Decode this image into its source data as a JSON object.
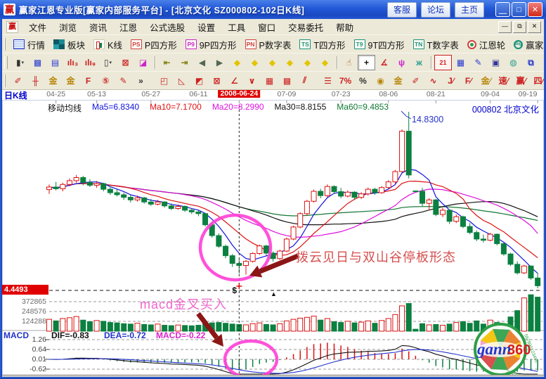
{
  "window": {
    "title": "赢家江恩专业版[赢家内部服务平台] - [北京文化  SZ000802-102日K线]",
    "logo_char": "赢",
    "title_buttons": [
      "客服",
      "论坛",
      "主页"
    ],
    "window_buttons": [
      {
        "name": "minimize-button",
        "glyph": "＿"
      },
      {
        "name": "maximize-button",
        "glyph": "□"
      },
      {
        "name": "close-button",
        "glyph": "✕",
        "close": true
      }
    ],
    "menu_items": [
      "文件",
      "浏览",
      "资讯",
      "江恩",
      "公式选股",
      "设置",
      "工具",
      "窗口",
      "交易委托",
      "帮助"
    ],
    "mdi_buttons": [
      {
        "name": "mdi-minimize-button",
        "glyph": "—"
      },
      {
        "name": "mdi-restore-button",
        "glyph": "⧉"
      },
      {
        "name": "mdi-close-button",
        "glyph": "✕"
      }
    ]
  },
  "toolbar_main": [
    {
      "name": "quotes-button",
      "icon": "table",
      "label": "行情"
    },
    {
      "name": "sectors-button",
      "icon": "blocks",
      "label": "板块"
    },
    {
      "name": "kline-button",
      "icon": "candles",
      "label": "K线"
    },
    {
      "name": "p-square-button",
      "icon": "badge",
      "badge": "PS",
      "bc": "#d04040",
      "label": "P四方形"
    },
    {
      "name": "p9-square-button",
      "icon": "badge",
      "badge": "P9",
      "bc": "#cc22cc",
      "label": "9P四方形"
    },
    {
      "name": "p-number-button",
      "icon": "badge",
      "badge": "PN",
      "bc": "#d04040",
      "label": "P数字表"
    },
    {
      "name": "t-square-button",
      "icon": "badge",
      "badge": "TS",
      "bc": "#18937a",
      "label": "T四方形"
    },
    {
      "name": "t9-square-button",
      "icon": "badge",
      "badge": "T9",
      "bc": "#18937a",
      "label": "9T四方形"
    },
    {
      "name": "t-number-button",
      "icon": "badge",
      "badge": "TN",
      "bc": "#18937a",
      "label": "T数字表"
    },
    {
      "name": "gann-wheel-button",
      "icon": "wheel",
      "label": "江恩轮"
    },
    {
      "name": "winner-wheel-button",
      "icon": "bigwheel",
      "badge": "Big",
      "label": "赢家轮"
    },
    {
      "name": "toolbar1-overflow",
      "icon": "chevron",
      "label": "»"
    }
  ],
  "toolbar_tools": [
    {
      "name": "candle-style-dropdown",
      "glyph": "▮",
      "caret": true,
      "color": "#333333"
    },
    {
      "name": "pattern-icon",
      "glyph": "▩",
      "color": "#2a3bd0"
    },
    {
      "name": "notes-icon",
      "glyph": "▤",
      "color": "#2a3bd0"
    },
    {
      "name": "bars-3-icon",
      "glyph": "ılı₃",
      "color": "#cc2222"
    },
    {
      "name": "bars-9-icon",
      "glyph": "ılı₉",
      "color": "#cc2222"
    },
    {
      "name": "thin-candle-dropdown",
      "glyph": "▯",
      "caret": true,
      "color": "#333333"
    },
    {
      "name": "percent-frame-icon",
      "glyph": "⊠",
      "color": "#cc2222"
    },
    {
      "name": "flag-chart-icon",
      "glyph": "◪",
      "color": "#cc22cc"
    },
    {
      "sep": true
    },
    {
      "name": "skip-start-button",
      "glyph": "⇤",
      "color": "#7a7a00"
    },
    {
      "name": "skip-end-button",
      "glyph": "⇥",
      "color": "#7a7a00"
    },
    {
      "name": "step-back-button",
      "glyph": "◀",
      "color": "#556655"
    },
    {
      "name": "step-forward-button",
      "glyph": "▶",
      "color": "#556655"
    },
    {
      "name": "zoom-left-button",
      "glyph": "◆",
      "color": "#e2c400"
    },
    {
      "name": "zoom-right-button",
      "glyph": "◆",
      "color": "#e2c400"
    },
    {
      "name": "expand-h-button",
      "glyph": "◆",
      "color": "#e2c400"
    },
    {
      "name": "compress-h-button",
      "glyph": "◆",
      "color": "#e2c400"
    },
    {
      "name": "expand-v-button",
      "glyph": "◆",
      "color": "#e2c400"
    },
    {
      "name": "compress-v-button",
      "glyph": "◆",
      "color": "#e2c400"
    },
    {
      "sep": true
    },
    {
      "name": "hand-tool",
      "glyph": "☝",
      "color": "#a05010"
    },
    {
      "name": "crosshair-tool",
      "glyph": "+",
      "color": "#111111",
      "pressed": true
    },
    {
      "name": "angle-tool",
      "glyph": "∡",
      "color": "#cc2222"
    },
    {
      "name": "gann-flower-tool",
      "glyph": "ψ",
      "color": "#cc22cc"
    },
    {
      "name": "cloud-tool",
      "glyph": "ж",
      "color": "#2a9d8f"
    },
    {
      "sep": true
    },
    {
      "name": "calendar-button",
      "glyph": "21",
      "cal": true
    },
    {
      "name": "calculator-button",
      "glyph": "▦",
      "color": "#2a3bd0"
    },
    {
      "name": "edit-notes-button",
      "glyph": "✎",
      "color": "#2a3bd0"
    },
    {
      "name": "save-button",
      "glyph": "▣",
      "color": "#333399"
    },
    {
      "name": "web-button",
      "glyph": "◍",
      "color": "#2a9d8f"
    },
    {
      "name": "remote-button",
      "glyph": "⧉",
      "color": "#2a3bd0"
    }
  ],
  "toolbar_draw": [
    {
      "name": "brush-tool",
      "glyph": "✐",
      "color": "#cc2222"
    },
    {
      "name": "grid-tool",
      "glyph": "╫",
      "color": "#cc2222"
    },
    {
      "name": "gold-grid-tool",
      "glyph": "金",
      "color": "#b8860b"
    },
    {
      "name": "gold-grid2-tool",
      "glyph": "金",
      "color": "#b8860b"
    },
    {
      "name": "f-grid-tool",
      "glyph": "F",
      "color": "#cc2222"
    },
    {
      "name": "five-grid-tool",
      "glyph": "⑤",
      "color": "#cc2222"
    },
    {
      "name": "pen-grid-tool",
      "glyph": "✎",
      "color": "#cc2222"
    },
    {
      "name": "draw-overflow",
      "glyph": "»",
      "color": "#333333"
    },
    {
      "sep": true
    },
    {
      "name": "gann-box-tool",
      "glyph": "◰",
      "color": "#cc2222"
    },
    {
      "name": "gann-fan-tool",
      "glyph": "◺",
      "color": "#cc2222"
    },
    {
      "name": "fan-box-tool",
      "glyph": "◩",
      "color": "#cc2222"
    },
    {
      "name": "fan-box2-tool",
      "glyph": "⊠",
      "color": "#cc2222"
    },
    {
      "name": "angle-lines-tool",
      "glyph": "∠",
      "color": "#cc2222"
    },
    {
      "name": "vee-tool",
      "glyph": "∨",
      "color": "#cc2222"
    },
    {
      "name": "grid-fine-tool",
      "glyph": "▦",
      "color": "#cc2222"
    },
    {
      "name": "grid-dense-tool",
      "glyph": "▩",
      "color": "#cc2222"
    },
    {
      "name": "slant-lines-tool",
      "glyph": "⫽",
      "color": "#cc2222"
    },
    {
      "sep": true
    },
    {
      "name": "ruler-tool",
      "glyph": "☰",
      "color": "#cc2222"
    },
    {
      "name": "seven-percent-tool",
      "glyph": "7%",
      "color": "#cc2222"
    },
    {
      "name": "percent-tool",
      "glyph": "%",
      "color": "#333333"
    },
    {
      "name": "gold-circle-tool",
      "glyph": "◉",
      "color": "#b8860b"
    },
    {
      "name": "gold-line-tool",
      "glyph": "金",
      "color": "#b8860b"
    },
    {
      "name": "pen-bars-tool",
      "glyph": "✐",
      "color": "#cc2222"
    },
    {
      "name": "wave-tool",
      "glyph": "∿",
      "color": "#cc2222"
    },
    {
      "name": "j-angle-tool",
      "glyph": "J∕",
      "color": "#cc2222"
    },
    {
      "name": "f-angle-tool",
      "glyph": "F∕",
      "color": "#cc2222"
    },
    {
      "name": "gold-angle-tool",
      "glyph": "金∕",
      "color": "#b8860b"
    },
    {
      "name": "speed-angle-tool",
      "glyph": "速∕",
      "color": "#cc2222"
    },
    {
      "name": "win-angle-tool",
      "glyph": "赢∕",
      "color": "#cc2222"
    },
    {
      "name": "four-angle-tool",
      "glyph": "四∕",
      "color": "#cc2222"
    }
  ],
  "datebar": {
    "period_label": "日K线",
    "ticks": [
      {
        "label": "04-25",
        "index": 1
      },
      {
        "label": "05-13",
        "index": 7
      },
      {
        "label": "05-27",
        "index": 15
      },
      {
        "label": "06-11",
        "index": 22
      },
      {
        "label": "2008-06-24",
        "index": 28,
        "highlight": true
      },
      {
        "label": "07-09",
        "index": 35
      },
      {
        "label": "07-23",
        "index": 43
      },
      {
        "label": "08-06",
        "index": 50
      },
      {
        "label": "08-21",
        "index": 57
      },
      {
        "label": "09-04",
        "index": 65
      },
      {
        "label": "09-19",
        "index": 72
      }
    ]
  },
  "price_pane": {
    "header_title": "移动均线",
    "ma5": "Ma5=6.8340",
    "ma10": "Ma10=7.1700",
    "ma20": "Ma20=8.2990",
    "ma30": "Ma30=8.8155",
    "ma60": "Ma60=9.4853",
    "stock_label": "000802  北京文化",
    "peak_price_label": "14.8300",
    "current_price_tag": "4.4493",
    "annotation_pattern": "拨云见日与双山谷停板形态",
    "annotation_macd": "macd金叉买入",
    "dollar_marker": "$",
    "triangle_marker": "▲"
  },
  "volume_pane": {
    "scale_labels": [
      "372865",
      "248576",
      "124288"
    ]
  },
  "macd_pane": {
    "label": "MACD",
    "dif_label": "DIF=-0.83",
    "dea_label": "DEA=-0.72",
    "macd_label": "MACD=-0.22",
    "scale_labels": [
      "1.26",
      "0.64",
      "0.01",
      "-0.62"
    ]
  },
  "logo360": {
    "word": "gann",
    "number": "360"
  },
  "colors": {
    "up": "#dd1111",
    "down": "#0b8040",
    "ma5": "#1111dd",
    "ma10": "#dd1111",
    "ma20": "#dd11dd",
    "ma30": "#111111",
    "ma60": "#117733",
    "circle": "#ff3fd6",
    "arrow": "#8b1616",
    "dif_line": "#111111",
    "dea_line": "#2233cc",
    "grid": "#9a9a9a",
    "price_line": "#111111"
  },
  "chart_data": {
    "type": "candlestick",
    "symbol": "SZ000802",
    "period": "102日K线",
    "cursor_index": 28,
    "cursor_date": "2008-06-24",
    "price_line_value": 4.4493,
    "high_label_value": 14.83,
    "ma_windows": [
      5,
      10,
      20,
      30,
      60
    ],
    "ma_at_cursor": {
      "ma5": 6.834,
      "ma10": 7.17,
      "ma20": 8.299,
      "ma30": 8.8155,
      "ma60": 9.4853
    },
    "macd_at_cursor": {
      "dif": -0.83,
      "dea": -0.72,
      "macd": -0.22
    },
    "volume_scale": [
      124288,
      248576,
      372865
    ],
    "macd_scale": [
      1.26,
      0.64,
      0.01,
      -0.62
    ],
    "candles": [
      [
        10.3,
        10.6,
        10.05,
        10.45,
        150
      ],
      [
        10.45,
        10.75,
        10.25,
        10.35,
        130
      ],
      [
        10.35,
        10.7,
        10.2,
        10.6,
        160
      ],
      [
        10.6,
        10.95,
        10.5,
        10.82,
        170
      ],
      [
        10.82,
        11.15,
        10.7,
        11.0,
        185
      ],
      [
        11.0,
        11.1,
        10.55,
        10.72,
        140
      ],
      [
        10.72,
        10.9,
        10.45,
        10.55,
        120
      ],
      [
        10.55,
        10.8,
        10.4,
        10.65,
        135
      ],
      [
        10.65,
        10.7,
        10.2,
        10.32,
        125
      ],
      [
        10.32,
        10.5,
        10.0,
        10.12,
        110
      ],
      [
        10.12,
        10.3,
        9.9,
        10.0,
        105
      ],
      [
        10.0,
        10.12,
        9.7,
        9.85,
        95
      ],
      [
        9.85,
        10.0,
        9.55,
        9.7,
        90
      ],
      [
        9.7,
        9.95,
        9.6,
        9.82,
        100
      ],
      [
        9.82,
        9.88,
        9.48,
        9.58,
        85
      ],
      [
        9.58,
        9.75,
        9.35,
        9.45,
        80
      ],
      [
        9.45,
        9.7,
        9.38,
        9.58,
        90
      ],
      [
        9.58,
        9.62,
        9.25,
        9.35,
        75
      ],
      [
        9.35,
        9.5,
        9.1,
        9.2,
        70
      ],
      [
        9.2,
        9.42,
        9.12,
        9.32,
        78
      ],
      [
        9.32,
        9.38,
        9.0,
        9.1,
        72
      ],
      [
        9.1,
        9.22,
        8.88,
        9.0,
        68
      ],
      [
        9.0,
        9.08,
        8.75,
        8.9,
        75
      ],
      [
        8.9,
        8.95,
        8.15,
        8.25,
        95
      ],
      [
        8.25,
        8.4,
        7.5,
        7.62,
        105
      ],
      [
        7.62,
        7.75,
        6.9,
        7.0,
        110
      ],
      [
        7.0,
        7.1,
        6.3,
        6.45,
        100
      ],
      [
        6.45,
        6.55,
        5.8,
        6.0,
        90
      ],
      [
        6.0,
        6.25,
        5.4,
        5.88,
        85
      ],
      [
        5.88,
        6.2,
        5.35,
        6.12,
        80
      ],
      [
        6.12,
        6.65,
        6.05,
        6.58,
        95
      ],
      [
        6.58,
        7.1,
        6.5,
        7.02,
        105
      ],
      [
        7.02,
        7.08,
        6.45,
        6.6,
        85
      ],
      [
        6.6,
        6.7,
        6.1,
        6.28,
        80
      ],
      [
        6.28,
        6.8,
        6.2,
        6.72,
        95
      ],
      [
        6.72,
        7.5,
        6.65,
        7.42,
        130
      ],
      [
        7.42,
        8.2,
        7.35,
        8.12,
        150
      ],
      [
        8.12,
        8.98,
        8.05,
        8.9,
        165
      ],
      [
        8.9,
        9.7,
        8.8,
        9.62,
        175
      ],
      [
        9.62,
        10.3,
        9.55,
        10.2,
        190
      ],
      [
        10.2,
        10.35,
        9.8,
        9.95,
        140
      ],
      [
        9.95,
        10.6,
        9.85,
        10.48,
        160
      ],
      [
        10.48,
        10.55,
        10.05,
        10.18,
        120
      ],
      [
        10.18,
        10.4,
        9.8,
        9.92,
        110
      ],
      [
        9.92,
        10.25,
        9.85,
        10.15,
        125
      ],
      [
        10.15,
        10.2,
        9.7,
        9.85,
        105
      ],
      [
        9.85,
        10.15,
        9.75,
        10.05,
        115
      ],
      [
        10.05,
        10.42,
        9.95,
        10.32,
        130
      ],
      [
        10.32,
        10.4,
        10.0,
        10.12,
        100
      ],
      [
        10.12,
        10.5,
        10.05,
        10.42,
        135
      ],
      [
        10.42,
        10.85,
        10.35,
        10.75,
        160
      ],
      [
        10.75,
        11.45,
        10.65,
        11.35,
        210
      ],
      [
        11.35,
        13.8,
        11.3,
        13.7,
        320
      ],
      [
        13.7,
        14.83,
        10.95,
        11.15,
        350
      ],
      [
        10.2,
        10.25,
        10.15,
        10.2,
        25
      ],
      [
        10.2,
        10.4,
        9.3,
        9.5,
        95
      ],
      [
        9.5,
        9.8,
        9.1,
        9.7,
        80
      ],
      [
        9.7,
        9.75,
        8.75,
        8.85,
        85
      ],
      [
        8.85,
        9.25,
        8.7,
        9.1,
        75
      ],
      [
        9.1,
        9.15,
        8.3,
        8.45,
        90
      ],
      [
        8.45,
        8.85,
        8.35,
        8.72,
        110
      ],
      [
        8.72,
        8.78,
        8.05,
        8.15,
        120
      ],
      [
        8.15,
        8.35,
        7.7,
        7.8,
        100
      ],
      [
        7.8,
        7.92,
        7.3,
        7.42,
        130
      ],
      [
        7.42,
        7.68,
        7.22,
        7.35,
        90
      ],
      [
        7.35,
        7.78,
        7.28,
        7.7,
        140
      ],
      [
        7.7,
        7.74,
        7.05,
        7.15,
        110
      ],
      [
        7.15,
        7.22,
        6.45,
        6.55,
        95
      ],
      [
        6.55,
        6.62,
        5.85,
        5.95,
        180
      ],
      [
        5.95,
        6.12,
        5.35,
        5.45,
        260
      ],
      [
        5.45,
        5.92,
        5.38,
        5.85,
        420
      ],
      [
        5.85,
        5.88,
        5.05,
        5.15,
        460
      ],
      [
        5.15,
        5.45,
        4.55,
        4.7,
        430
      ]
    ]
  }
}
